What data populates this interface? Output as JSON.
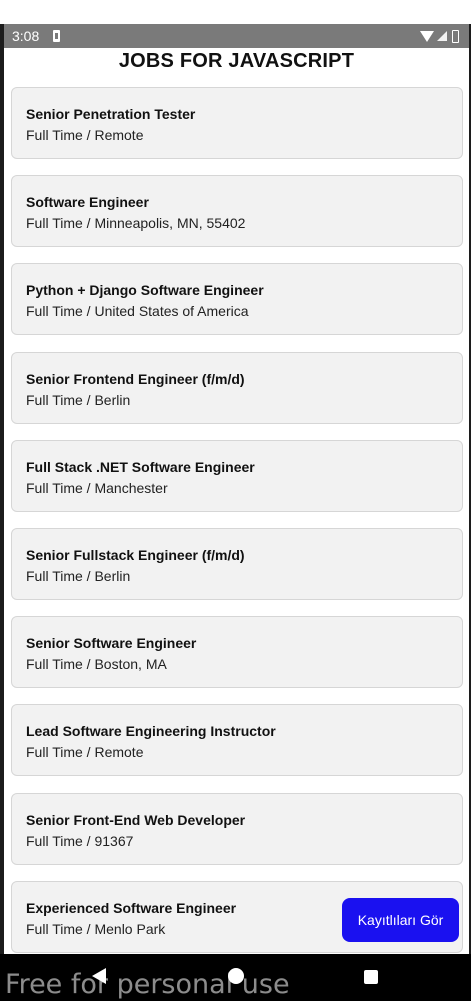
{
  "status_bar": {
    "time": "3:08",
    "icons": [
      "notification-icon",
      "wifi-icon",
      "signal-icon",
      "battery-icon"
    ]
  },
  "page": {
    "title": "JOBS FOR JAVASCRIPT"
  },
  "jobs": [
    {
      "title": "Senior Penetration Tester",
      "meta": "Full Time / Remote"
    },
    {
      "title": "Software Engineer",
      "meta": "Full Time / Minneapolis, MN, 55402"
    },
    {
      "title": "Python + Django Software Engineer",
      "meta": "Full Time / United States of America"
    },
    {
      "title": "Senior Frontend Engineer (f/m/d)",
      "meta": "Full Time / Berlin"
    },
    {
      "title": "Full Stack .NET Software Engineer",
      "meta": "Full Time / Manchester"
    },
    {
      "title": "Senior Fullstack Engineer (f/m/d)",
      "meta": "Full Time / Berlin"
    },
    {
      "title": "Senior Software Engineer",
      "meta": "Full Time / Boston, MA"
    },
    {
      "title": "Lead Software Engineering Instructor",
      "meta": "Full Time / Remote"
    },
    {
      "title": "Senior Front-End Web Developer",
      "meta": "Full Time / 91367"
    },
    {
      "title": "Experienced Software Engineer",
      "meta": "Full Time / Menlo Park"
    }
  ],
  "fab": {
    "label": "Kayıtlıları Gör",
    "color": "#1a11f0"
  },
  "nav_bar": {
    "icons": [
      "back-icon",
      "home-icon",
      "recents-icon"
    ]
  },
  "watermark": "Free for personal use"
}
